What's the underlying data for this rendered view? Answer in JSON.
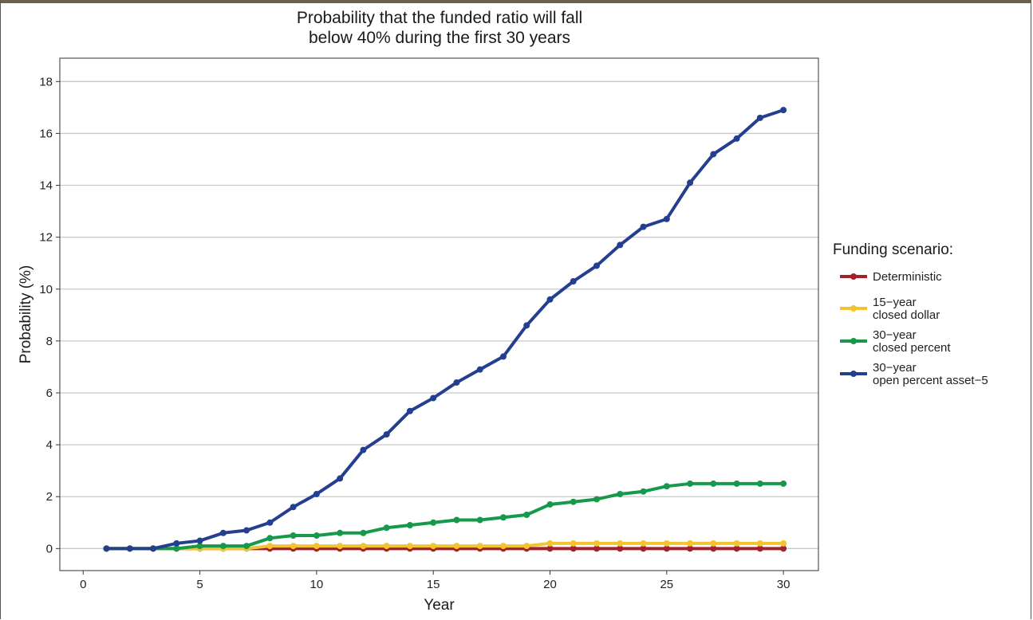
{
  "chart_data": {
    "type": "line",
    "title_lines": [
      "Probability that the funded ratio will fall",
      "below 40% during the first 30 years"
    ],
    "xlabel": "Year",
    "ylabel": "Probability (%)",
    "xlim": [
      -1,
      31.5
    ],
    "ylim": [
      -0.85,
      18.9
    ],
    "xticks": [
      0,
      5,
      10,
      15,
      20,
      25,
      30
    ],
    "yticks": [
      0,
      2,
      4,
      6,
      8,
      10,
      12,
      14,
      16,
      18
    ],
    "grid": "horizontal major",
    "legend": {
      "title": "Funding scenario:",
      "position": "right"
    },
    "x": [
      1,
      2,
      3,
      4,
      5,
      6,
      7,
      8,
      9,
      10,
      11,
      12,
      13,
      14,
      15,
      16,
      17,
      18,
      19,
      20,
      21,
      22,
      23,
      24,
      25,
      26,
      27,
      28,
      29,
      30
    ],
    "series": [
      {
        "name": "Deterministic",
        "label_lines": [
          "Deterministic"
        ],
        "color": "#a4202a",
        "values": [
          0,
          0,
          0,
          0,
          0,
          0,
          0,
          0,
          0,
          0,
          0,
          0,
          0,
          0,
          0,
          0,
          0,
          0,
          0,
          0,
          0,
          0,
          0,
          0,
          0,
          0,
          0,
          0,
          0,
          0
        ]
      },
      {
        "name": "15−year closed dollar",
        "label_lines": [
          "15−year",
          "closed dollar"
        ],
        "color": "#f4c430",
        "values": [
          0,
          0,
          0,
          0,
          0,
          0,
          0,
          0.1,
          0.1,
          0.1,
          0.1,
          0.1,
          0.1,
          0.1,
          0.1,
          0.1,
          0.1,
          0.1,
          0.1,
          0.2,
          0.2,
          0.2,
          0.2,
          0.2,
          0.2,
          0.2,
          0.2,
          0.2,
          0.2,
          0.2
        ]
      },
      {
        "name": "30−year closed percent",
        "label_lines": [
          "30−year",
          "closed percent"
        ],
        "color": "#16994a",
        "values": [
          0,
          0,
          0,
          0,
          0.1,
          0.1,
          0.1,
          0.4,
          0.5,
          0.5,
          0.6,
          0.6,
          0.8,
          0.9,
          1.0,
          1.1,
          1.1,
          1.2,
          1.3,
          1.7,
          1.8,
          1.9,
          2.1,
          2.2,
          2.4,
          2.5,
          2.5,
          2.5,
          2.5,
          2.5
        ]
      },
      {
        "name": "30−year open percent asset−5",
        "label_lines": [
          "30−year",
          "open percent asset−5"
        ],
        "color": "#243f8f",
        "values": [
          0,
          0,
          0,
          0.2,
          0.3,
          0.6,
          0.7,
          1.0,
          1.6,
          2.1,
          2.7,
          3.8,
          4.4,
          5.3,
          5.8,
          6.4,
          6.9,
          7.4,
          8.6,
          9.6,
          10.3,
          10.9,
          11.7,
          12.4,
          12.7,
          14.1,
          15.2,
          15.8,
          16.6,
          16.9
        ]
      }
    ]
  }
}
